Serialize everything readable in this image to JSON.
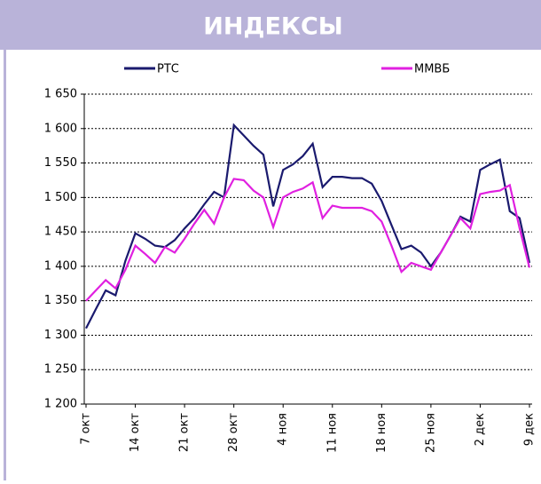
{
  "chart_data": {
    "type": "line",
    "title": "ИНДЕКСЫ",
    "categories": [
      "7 окт",
      null,
      null,
      null,
      null,
      "14 окт",
      null,
      null,
      null,
      null,
      "21 окт",
      null,
      null,
      null,
      null,
      "28 окт",
      null,
      null,
      null,
      null,
      "4 ноя",
      null,
      null,
      null,
      null,
      "11 ноя",
      null,
      null,
      null,
      null,
      "18 ноя",
      null,
      null,
      null,
      null,
      "25 ноя",
      null,
      null,
      null,
      null,
      "2 дек",
      null,
      null,
      null,
      null,
      "9 дек"
    ],
    "series": [
      {
        "name": "РТС",
        "color": "#1a1a6e",
        "values": [
          1310,
          1338,
          1365,
          1358,
          1408,
          1448,
          1440,
          1430,
          1428,
          1438,
          1455,
          1470,
          1490,
          1508,
          1500,
          1605,
          1590,
          1575,
          1562,
          1487,
          1540,
          1548,
          1560,
          1578,
          1515,
          1530,
          1530,
          1528,
          1528,
          1520,
          1495,
          1460,
          1425,
          1430,
          1420,
          1400,
          1420,
          1445,
          1472,
          1465,
          1540,
          1548,
          1555,
          1480,
          1470,
          1405
        ]
      },
      {
        "name": "ММВБ",
        "color": "#e020e0",
        "values": [
          1350,
          1365,
          1380,
          1368,
          1395,
          1430,
          1418,
          1405,
          1428,
          1420,
          1440,
          1462,
          1482,
          1462,
          1500,
          1527,
          1525,
          1510,
          1500,
          1457,
          1500,
          1508,
          1513,
          1522,
          1470,
          1488,
          1485,
          1485,
          1485,
          1480,
          1465,
          1430,
          1392,
          1405,
          1400,
          1395,
          1420,
          1445,
          1470,
          1455,
          1505,
          1508,
          1510,
          1518,
          1455,
          1398
        ]
      }
    ],
    "ylim": [
      1200,
      1650
    ],
    "yticks": [
      {
        "value": 1200,
        "label": "1 200"
      },
      {
        "value": 1250,
        "label": "1 250"
      },
      {
        "value": 1300,
        "label": "1 300"
      },
      {
        "value": 1350,
        "label": "1 350"
      },
      {
        "value": 1400,
        "label": "1 400"
      },
      {
        "value": 1450,
        "label": "1 450"
      },
      {
        "value": 1500,
        "label": "1 500"
      },
      {
        "value": 1550,
        "label": "1 550"
      },
      {
        "value": 1600,
        "label": "1 600"
      },
      {
        "value": 1650,
        "label": "1 650"
      }
    ],
    "grid": true
  }
}
